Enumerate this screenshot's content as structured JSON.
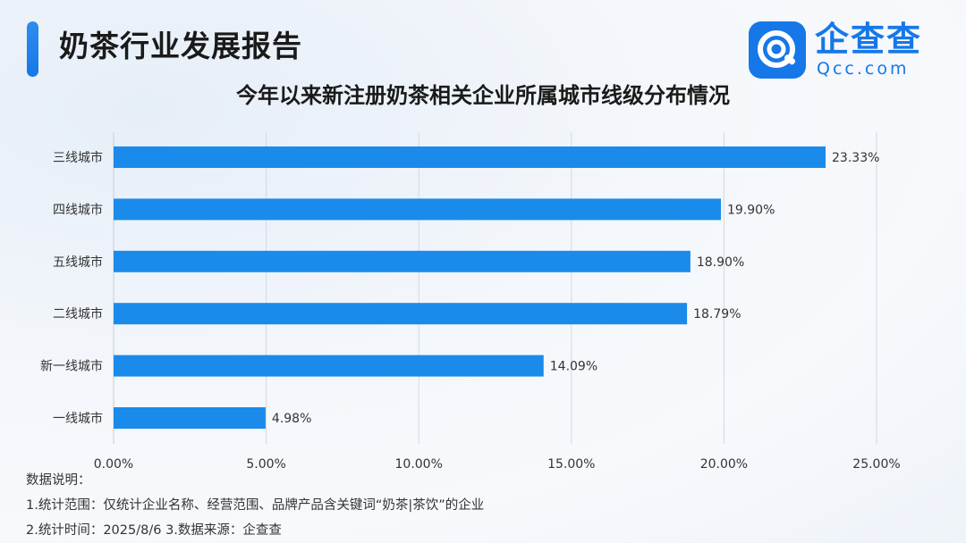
{
  "header": {
    "title": "奶茶行业发展报告",
    "accent_color": "#1677e8"
  },
  "logo": {
    "name_cn": "企查查",
    "name_en": "Qcc.com",
    "icon": "qcc-logo-icon"
  },
  "chart_data": {
    "type": "bar",
    "orientation": "horizontal",
    "title": "今年以来新注册奶茶相关企业所属城市线级分布情况",
    "categories": [
      "三线城市",
      "四线城市",
      "五线城市",
      "二线城市",
      "新一线城市",
      "一线城市"
    ],
    "values": [
      23.33,
      19.9,
      18.9,
      18.79,
      14.09,
      4.98
    ],
    "value_labels": [
      "23.33%",
      "19.90%",
      "18.90%",
      "18.79%",
      "14.09%",
      "4.98%"
    ],
    "xlim": [
      0,
      25
    ],
    "x_ticks": [
      "0.00%",
      "5.00%",
      "10.00%",
      "15.00%",
      "20.00%",
      "25.00%"
    ],
    "grid": "vertical",
    "bar_color": "#1a8bea"
  },
  "notes": {
    "heading": "数据说明：",
    "line1": "1.统计范围：仅统计企业名称、经营范围、品牌产品含关键词“奶茶|茶饮”的企业",
    "line2": "2.统计时间：2025/8/6  3.数据来源：企查查"
  }
}
